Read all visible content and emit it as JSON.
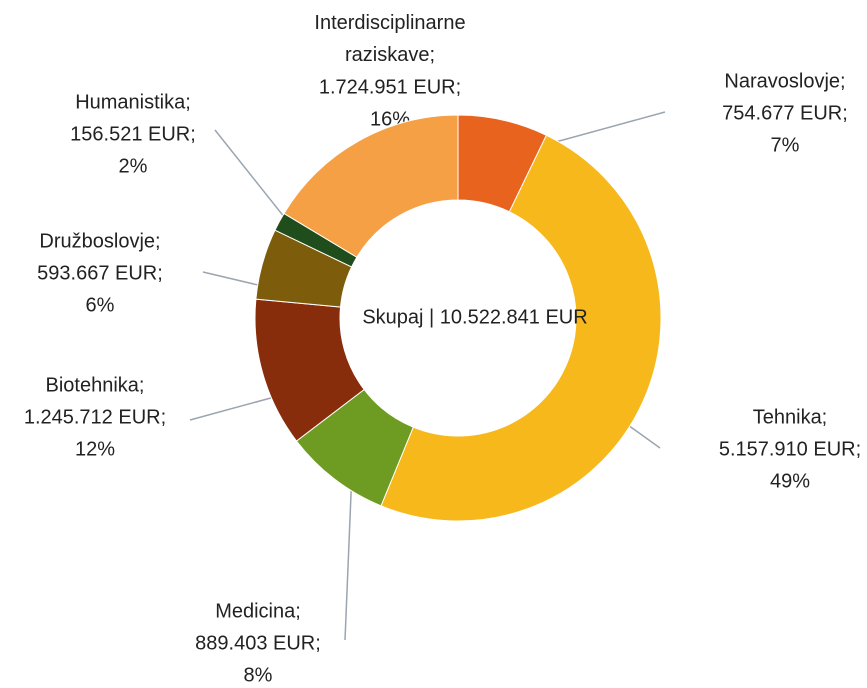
{
  "chart_data": {
    "type": "donut",
    "center_label": "Skupaj | 10.522.841 EUR",
    "categories": [
      "Naravoslovje;",
      "Tehnika;",
      "Medicina;",
      "Biotehnika;",
      "Družboslovje;",
      "Humanistika;",
      "Interdisciplinarne raziskave;"
    ],
    "values": [
      754677,
      5157910,
      889403,
      1245712,
      593667,
      156521,
      1724951
    ],
    "value_labels": [
      "754.677 EUR;",
      "5.157.910 EUR;",
      "889.403 EUR;",
      "1.245.712 EUR;",
      "593.667 EUR;",
      "156.521 EUR;",
      "1.724.951 EUR;"
    ],
    "shares": [
      7,
      49,
      8,
      12,
      6,
      2,
      16
    ],
    "share_labels": [
      "7%",
      "49%",
      "8%",
      "12%",
      "6%",
      "2%",
      "16%"
    ],
    "colors": [
      "#e8631e",
      "#f7b81c",
      "#6e9b22",
      "#882d0c",
      "#7d5c0b",
      "#1f4d1c",
      "#f5a044"
    ]
  }
}
